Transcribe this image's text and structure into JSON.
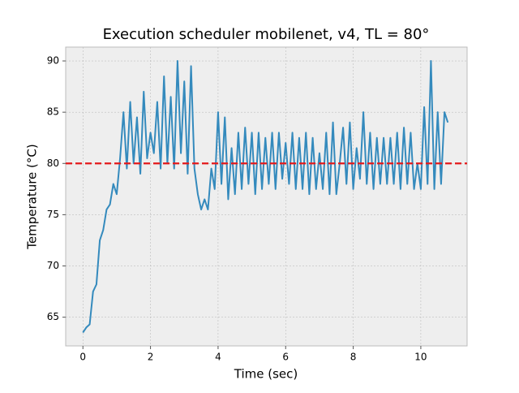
{
  "chart_data": {
    "type": "line",
    "title": "Execution scheduler mobilenet, v4, TL = 80°",
    "x_label": "Time (sec)",
    "y_label": "Temperature (°C)",
    "x": [
      0.0,
      0.1,
      0.2,
      0.3,
      0.4,
      0.5,
      0.6,
      0.7,
      0.8,
      0.9,
      1.0,
      1.1,
      1.2,
      1.3,
      1.4,
      1.5,
      1.6,
      1.7,
      1.8,
      1.9,
      2.0,
      2.1,
      2.2,
      2.3,
      2.4,
      2.5,
      2.6,
      2.7,
      2.8,
      2.9,
      3.0,
      3.1,
      3.2,
      3.3,
      3.4,
      3.5,
      3.6,
      3.7,
      3.8,
      3.9,
      4.0,
      4.1,
      4.2,
      4.3,
      4.4,
      4.5,
      4.6,
      4.7,
      4.8,
      4.9,
      5.0,
      5.1,
      5.2,
      5.3,
      5.4,
      5.5,
      5.6,
      5.7,
      5.8,
      5.9,
      6.0,
      6.1,
      6.2,
      6.3,
      6.4,
      6.5,
      6.6,
      6.7,
      6.8,
      6.9,
      7.0,
      7.1,
      7.2,
      7.3,
      7.4,
      7.5,
      7.6,
      7.7,
      7.8,
      7.9,
      8.0,
      8.1,
      8.2,
      8.3,
      8.4,
      8.5,
      8.6,
      8.7,
      8.8,
      8.9,
      9.0,
      9.1,
      9.2,
      9.3,
      9.4,
      9.5,
      9.6,
      9.7,
      9.8,
      9.9,
      10.0,
      10.1,
      10.2,
      10.3,
      10.4,
      10.5,
      10.6,
      10.7,
      10.8
    ],
    "series": [
      {
        "color": "#348abd",
        "values": [
          63.5,
          64.0,
          64.3,
          67.5,
          68.2,
          72.5,
          73.5,
          75.5,
          76.0,
          78.0,
          77.0,
          80.5,
          85.0,
          79.5,
          86.0,
          80.0,
          84.5,
          79.0,
          87.0,
          80.5,
          83.0,
          81.0,
          86.0,
          79.5,
          88.5,
          80.0,
          86.5,
          79.5,
          90.0,
          81.0,
          88.0,
          79.0,
          89.5,
          79.5,
          77.0,
          75.5,
          76.5,
          75.5,
          79.5,
          77.5,
          85.0,
          78.0,
          84.5,
          76.5,
          81.5,
          77.0,
          83.0,
          77.5,
          83.5,
          78.0,
          83.0,
          77.0,
          83.0,
          77.5,
          82.5,
          78.0,
          83.0,
          77.5,
          83.0,
          78.5,
          82.0,
          78.0,
          83.0,
          77.5,
          82.5,
          77.5,
          83.0,
          77.0,
          82.5,
          77.5,
          81.0,
          77.5,
          83.0,
          77.0,
          84.0,
          77.0,
          80.0,
          83.5,
          78.0,
          84.0,
          77.5,
          81.5,
          78.5,
          85.0,
          78.0,
          83.0,
          77.5,
          82.5,
          78.0,
          82.5,
          78.0,
          82.5,
          78.0,
          83.0,
          77.5,
          83.5,
          78.0,
          83.0,
          77.5,
          80.0,
          77.5,
          85.5,
          78.0,
          90.0,
          77.5,
          85.0,
          78.0,
          85.0,
          84.0
        ]
      }
    ],
    "hline": {
      "value": 80,
      "color": "#e41a1c"
    },
    "xlim": [
      -0.51,
      11.37
    ],
    "ylim": [
      62.2,
      91.35
    ],
    "xticks": [
      0,
      2,
      4,
      6,
      8,
      10
    ],
    "yticks": [
      65,
      70,
      75,
      80,
      85,
      90
    ],
    "grid": true
  }
}
